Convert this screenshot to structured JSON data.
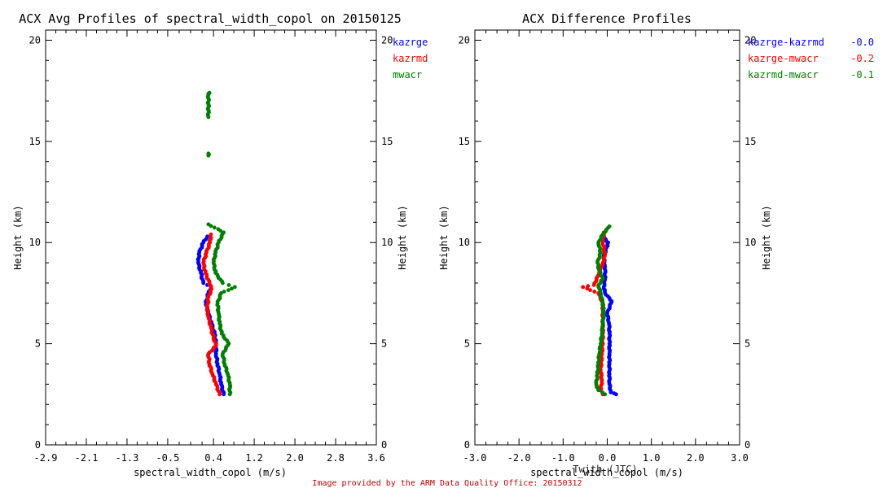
{
  "credit": "Image provided by the ARM Data Quality Office: 20150312",
  "colors": {
    "kazrge": "#0000ff",
    "kazrmd": "#ff0000",
    "mwacr": "#008000",
    "axes": "#000000",
    "credit": "#c00000"
  },
  "chart_data": [
    {
      "type": "scatter",
      "title": "ACX Avg Profiles of spectral_width_copol on 20150125",
      "xlabel": "spectral_width_copol (m/s)",
      "ylabel": "Height (km)",
      "ylabel_right": "Height (km)",
      "xlim": [
        -2.9,
        3.6
      ],
      "ylim": [
        0,
        20.5
      ],
      "xticks": [
        "-2.9",
        "-2.1",
        "-1.3",
        "-0.5",
        "0.4",
        "1.2",
        "2.0",
        "2.8",
        "3.6"
      ],
      "xtick_values": [
        -2.9,
        -2.1,
        -1.3,
        -0.5,
        0.4,
        1.2,
        2.0,
        2.8,
        3.6
      ],
      "yticks": [
        "0",
        "5",
        "10",
        "15",
        "20"
      ],
      "ytick_values": [
        0,
        5,
        10,
        15,
        20
      ],
      "legend_placement": "top-right",
      "series": [
        {
          "name": "kazrge",
          "color": "#0000ff",
          "points": [
            [
              0.6,
              2.5
            ],
            [
              0.55,
              3.0
            ],
            [
              0.52,
              3.5
            ],
            [
              0.48,
              4.0
            ],
            [
              0.45,
              4.5
            ],
            [
              0.45,
              5.0
            ],
            [
              0.42,
              5.5
            ],
            [
              0.36,
              6.0
            ],
            [
              0.3,
              6.5
            ],
            [
              0.25,
              7.0
            ],
            [
              0.3,
              7.5
            ],
            [
              0.35,
              7.8
            ],
            [
              0.2,
              8.0
            ],
            [
              0.15,
              8.5
            ],
            [
              0.1,
              9.0
            ],
            [
              0.12,
              9.5
            ],
            [
              0.2,
              10.0
            ],
            [
              0.28,
              10.3
            ]
          ]
        },
        {
          "name": "kazrmd",
          "color": "#ff0000",
          "points": [
            [
              0.52,
              2.5
            ],
            [
              0.45,
              3.0
            ],
            [
              0.38,
              3.5
            ],
            [
              0.32,
              4.0
            ],
            [
              0.3,
              4.5
            ],
            [
              0.45,
              4.9
            ],
            [
              0.4,
              5.3
            ],
            [
              0.35,
              5.8
            ],
            [
              0.3,
              6.3
            ],
            [
              0.28,
              6.8
            ],
            [
              0.3,
              7.3
            ],
            [
              0.36,
              7.7
            ],
            [
              0.32,
              8.0
            ],
            [
              0.24,
              8.5
            ],
            [
              0.2,
              9.0
            ],
            [
              0.26,
              9.5
            ],
            [
              0.33,
              10.0
            ],
            [
              0.35,
              10.4
            ]
          ]
        },
        {
          "name": "mwacr",
          "color": "#008000",
          "points": [
            [
              0.72,
              2.5
            ],
            [
              0.72,
              3.0
            ],
            [
              0.68,
              3.5
            ],
            [
              0.62,
              4.0
            ],
            [
              0.58,
              4.5
            ],
            [
              0.7,
              5.0
            ],
            [
              0.56,
              5.5
            ],
            [
              0.52,
              6.0
            ],
            [
              0.5,
              6.5
            ],
            [
              0.48,
              7.0
            ],
            [
              0.55,
              7.5
            ],
            [
              0.82,
              7.8
            ],
            [
              0.58,
              8.0
            ],
            [
              0.44,
              8.5
            ],
            [
              0.4,
              9.0
            ],
            [
              0.44,
              9.5
            ],
            [
              0.5,
              10.0
            ],
            [
              0.6,
              10.5
            ],
            [
              0.3,
              10.9
            ],
            [
              0.3,
              14.3
            ],
            [
              0.3,
              14.4
            ],
            [
              0.3,
              16.2
            ],
            [
              0.3,
              17.3
            ],
            [
              0.32,
              17.4
            ]
          ]
        }
      ]
    },
    {
      "type": "scatter",
      "title": "ACX Difference Profiles",
      "xlabel": "spectral_width_copol (m/s)",
      "xlabel_overlay": "Twith (JTC)",
      "ylabel": "Height (km)",
      "ylabel_right": "Height (km)",
      "xlim": [
        -3.0,
        3.0
      ],
      "ylim": [
        0,
        20.5
      ],
      "xticks": [
        "-3.0",
        "-2.0",
        "-1.0",
        "0.0",
        "1.0",
        "2.0",
        "3.0"
      ],
      "xtick_values": [
        -3.0,
        -2.0,
        -1.0,
        0.0,
        1.0,
        2.0,
        3.0
      ],
      "yticks": [
        "0",
        "5",
        "10",
        "15",
        "20"
      ],
      "ytick_values": [
        0,
        5,
        10,
        15,
        20
      ],
      "legend_placement": "top-right",
      "series": [
        {
          "name": "kazrge-kazrmd",
          "mean": "-0.0",
          "color": "#0000ff",
          "points": [
            [
              0.2,
              2.5
            ],
            [
              0.08,
              2.6
            ],
            [
              0.05,
              3.0
            ],
            [
              0.05,
              3.5
            ],
            [
              0.05,
              4.0
            ],
            [
              0.05,
              4.5
            ],
            [
              0.05,
              5.0
            ],
            [
              0.05,
              5.5
            ],
            [
              0.04,
              6.0
            ],
            [
              0.0,
              6.5
            ],
            [
              0.1,
              7.1
            ],
            [
              -0.05,
              7.5
            ],
            [
              -0.08,
              7.8
            ],
            [
              -0.05,
              8.2
            ],
            [
              -0.05,
              8.8
            ],
            [
              -0.08,
              9.3
            ],
            [
              0.02,
              10.0
            ],
            [
              -0.1,
              10.3
            ]
          ]
        },
        {
          "name": "kazrge-mwacr",
          "mean": "-0.2",
          "color": "#ff0000",
          "points": [
            [
              -0.1,
              2.5
            ],
            [
              -0.15,
              2.7
            ],
            [
              -0.12,
              3.2
            ],
            [
              -0.15,
              3.7
            ],
            [
              -0.12,
              4.5
            ],
            [
              -0.1,
              5.5
            ],
            [
              -0.1,
              6.5
            ],
            [
              -0.1,
              7.0
            ],
            [
              -0.2,
              7.5
            ],
            [
              -0.55,
              7.8
            ],
            [
              -0.3,
              7.9
            ],
            [
              -0.2,
              8.4
            ],
            [
              -0.1,
              9.0
            ],
            [
              -0.05,
              9.4
            ],
            [
              -0.1,
              10.0
            ],
            [
              -0.08,
              10.5
            ]
          ]
        },
        {
          "name": "kazrmd-mwacr",
          "mean": "-0.1",
          "color": "#008000",
          "points": [
            [
              -0.05,
              2.5
            ],
            [
              -0.2,
              2.7
            ],
            [
              -0.25,
              3.0
            ],
            [
              -0.22,
              3.5
            ],
            [
              -0.2,
              4.0
            ],
            [
              -0.18,
              4.5
            ],
            [
              -0.15,
              5.0
            ],
            [
              -0.12,
              5.5
            ],
            [
              -0.1,
              6.0
            ],
            [
              -0.08,
              6.5
            ],
            [
              -0.1,
              7.0
            ],
            [
              -0.15,
              7.5
            ],
            [
              -0.2,
              7.9
            ],
            [
              -0.1,
              8.2
            ],
            [
              -0.18,
              8.6
            ],
            [
              -0.22,
              9.0
            ],
            [
              -0.15,
              9.5
            ],
            [
              -0.2,
              10.0
            ],
            [
              -0.1,
              10.4
            ],
            [
              0.05,
              10.8
            ]
          ]
        }
      ]
    }
  ]
}
